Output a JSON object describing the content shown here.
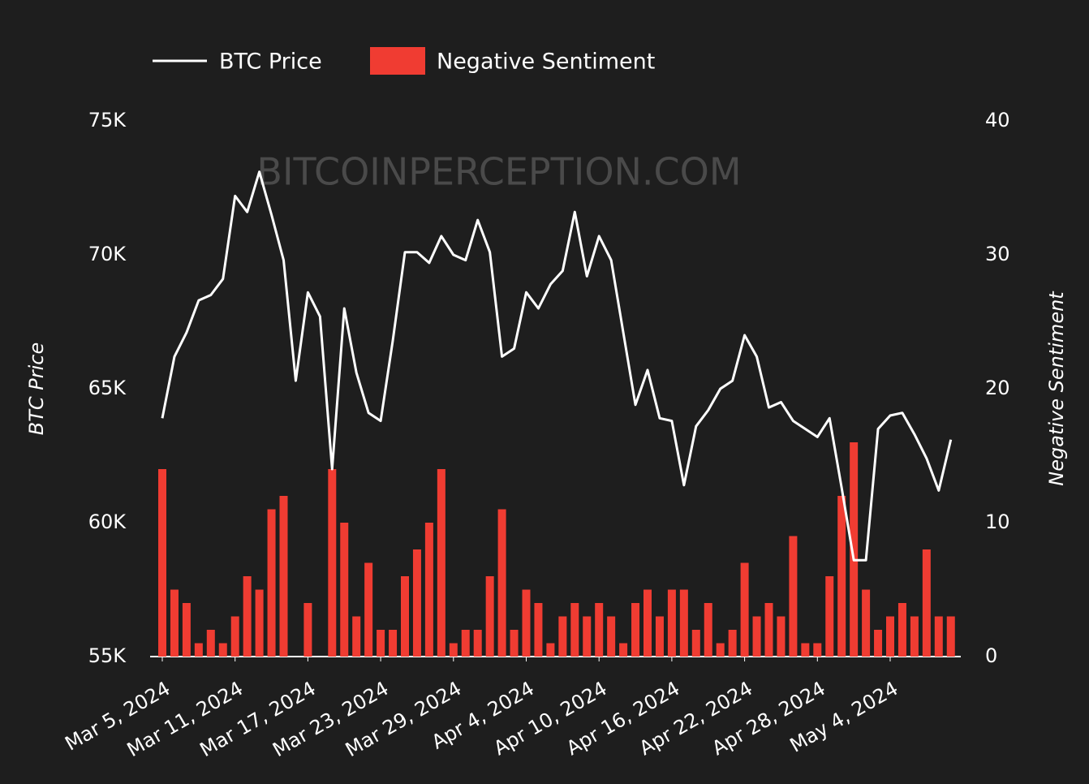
{
  "chart_data": {
    "type": "bar_line",
    "watermark": "BITCOINPERCEPTION.COM",
    "categories": [
      "Mar 5, 2024",
      null,
      null,
      null,
      null,
      null,
      "Mar 11, 2024",
      null,
      null,
      null,
      null,
      null,
      "Mar 17, 2024",
      null,
      null,
      null,
      null,
      null,
      "Mar 23, 2024",
      null,
      null,
      null,
      null,
      null,
      "Mar 29, 2024",
      null,
      null,
      null,
      null,
      null,
      "Apr 4, 2024",
      null,
      null,
      null,
      null,
      null,
      "Apr 10, 2024",
      null,
      null,
      null,
      null,
      null,
      "Apr 16, 2024",
      null,
      null,
      null,
      null,
      null,
      "Apr 22, 2024",
      null,
      null,
      null,
      null,
      null,
      "Apr 28, 2024",
      null,
      null,
      null,
      null,
      null,
      "May 4, 2024",
      null,
      null,
      null,
      null,
      null
    ],
    "series": [
      {
        "name": "BTC Price",
        "type": "line",
        "axis": "y",
        "color": "#ffffff",
        "values": [
          63900,
          66200,
          67100,
          68300,
          68500,
          69100,
          72200,
          71600,
          73100,
          71500,
          69800,
          65300,
          68600,
          67700,
          62000,
          68000,
          65600,
          64100,
          63800,
          66800,
          70100,
          70100,
          69700,
          70700,
          70000,
          69800,
          71300,
          70100,
          66200,
          66500,
          68600,
          68000,
          68900,
          69400,
          71600,
          69200,
          70700,
          69800,
          67100,
          64400,
          65700,
          63900,
          63800,
          61400,
          63600,
          64200,
          65000,
          65300,
          67000,
          66200,
          64300,
          64500,
          63800,
          63500,
          63200,
          63900,
          61300,
          58600,
          58600,
          63500,
          64000,
          64100,
          63300,
          62400,
          61200,
          63100
        ]
      },
      {
        "name": "Negative Sentiment",
        "type": "bar",
        "axis": "y2",
        "color": "#f03c32",
        "values": [
          14,
          5,
          4,
          1,
          2,
          1,
          3,
          6,
          5,
          11,
          12,
          0,
          4,
          0,
          14,
          10,
          3,
          7,
          2,
          2,
          6,
          8,
          10,
          14,
          1,
          2,
          2,
          6,
          11,
          2,
          5,
          4,
          1,
          3,
          4,
          3,
          4,
          3,
          1,
          4,
          5,
          3,
          5,
          5,
          2,
          4,
          1,
          2,
          7,
          3,
          4,
          3,
          9,
          1,
          1,
          6,
          12,
          16,
          5,
          2,
          3,
          4,
          3,
          8,
          3,
          3
        ]
      }
    ],
    "ylabel": "BTC Price",
    "y2label": "Negative Sentiment",
    "ylim": [
      55000,
      75000
    ],
    "yticks": [
      {
        "value": 55000,
        "label": "55K"
      },
      {
        "value": 60000,
        "label": "60K"
      },
      {
        "value": 65000,
        "label": "65K"
      },
      {
        "value": 70000,
        "label": "70K"
      },
      {
        "value": 75000,
        "label": "75K"
      }
    ],
    "y2lim": [
      0,
      40
    ],
    "y2ticks": [
      0,
      10,
      20,
      30,
      40
    ]
  }
}
